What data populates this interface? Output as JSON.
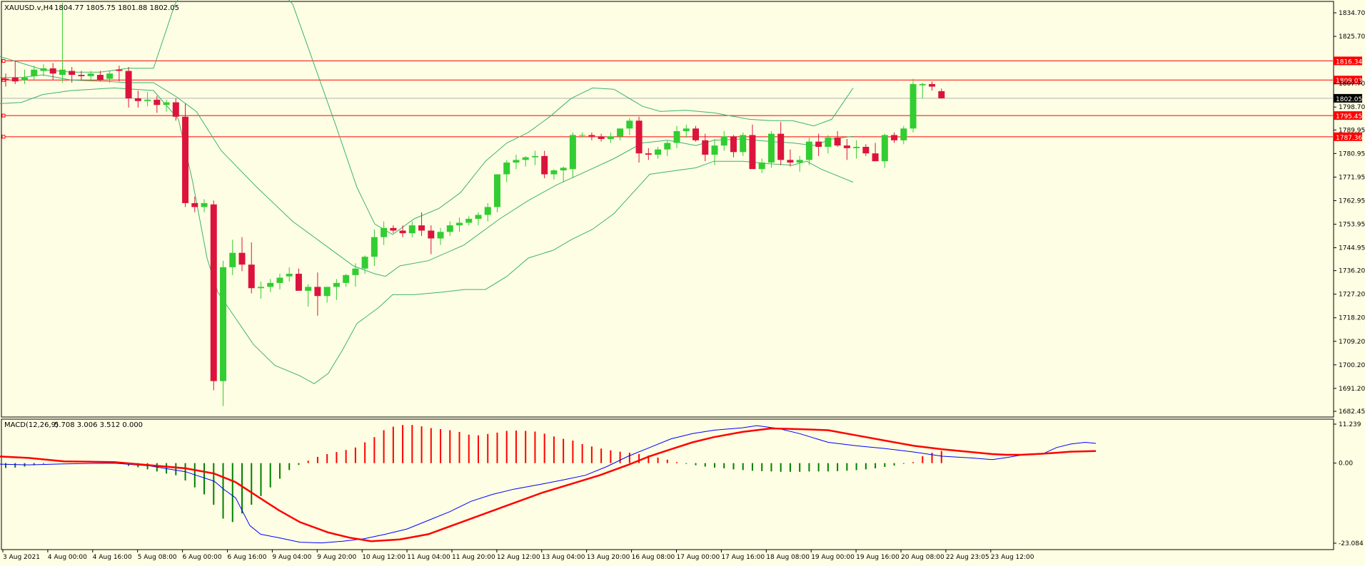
{
  "colors": {
    "background": "#fefee4",
    "bull": "#32cd32",
    "bear": "#dc143c",
    "bands": "#3cb371",
    "macd_line": "#0000ff",
    "signal_line": "#ff0000",
    "levels": "#ff0000",
    "current_price": "#000000"
  },
  "header": {
    "symbol": "XAUUSD.v,H4",
    "ohlc": "1804.77 1805.75 1801.88 1802.05"
  },
  "price_axis": {
    "min": 1682.45,
    "max": 1834.7,
    "ticks": [
      "1834.70",
      "1825.70",
      "1807.70",
      "1798.70",
      "1789.95",
      "1780.95",
      "1771.95",
      "1762.95",
      "1753.95",
      "1744.95",
      "1736.20",
      "1727.20",
      "1718.20",
      "1709.20",
      "1700.20",
      "1691.20",
      "1682.45"
    ]
  },
  "levels": [
    {
      "price": 1816.34,
      "label": "1816.34"
    },
    {
      "price": 1809.03,
      "label": "1809.03"
    },
    {
      "price": 1795.45,
      "label": "1795.45"
    },
    {
      "price": 1787.36,
      "label": "1787.36"
    }
  ],
  "current_price": {
    "price": 1802.05,
    "label": "1802.05"
  },
  "indicator": {
    "name": "MACD(12,26,9)",
    "values": "5.708 3.006 3.512 0.000",
    "axis_labels": [
      "11.239",
      "0.00",
      "-23.084"
    ],
    "max": 11.239,
    "min": -23.084
  },
  "time_axis": [
    "3 Aug 2021",
    "4 Aug 00:00",
    "4 Aug 16:00",
    "5 Aug 08:00",
    "6 Aug 00:00",
    "6 Aug 16:00",
    "9 Aug 04:00",
    "9 Aug 20:00",
    "10 Aug 12:00",
    "11 Aug 04:00",
    "11 Aug 20:00",
    "12 Aug 12:00",
    "13 Aug 04:00",
    "13 Aug 20:00",
    "16 Aug 08:00",
    "17 Aug 00:00",
    "17 Aug 16:00",
    "18 Aug 08:00",
    "19 Aug 00:00",
    "19 Aug 16:00",
    "20 Aug 08:00",
    "22 Aug 23:05",
    "23 Aug 12:00"
  ],
  "chart_data": {
    "type": "candlestick",
    "ohlc": [
      [
        1809.5,
        1811.5,
        1806.5,
        1809.0
      ],
      [
        1810.0,
        1816.5,
        1807.5,
        1808.5
      ],
      [
        1809.0,
        1813.0,
        1807.5,
        1810.0
      ],
      [
        1810.5,
        1814.5,
        1809.0,
        1813.0
      ],
      [
        1812.5,
        1815.0,
        1810.5,
        1813.5
      ],
      [
        1813.5,
        1815.5,
        1809.0,
        1811.5
      ],
      [
        1811.0,
        1838.5,
        1808.0,
        1813.0
      ],
      [
        1812.5,
        1814.0,
        1808.0,
        1811.0
      ],
      [
        1811.0,
        1812.5,
        1809.0,
        1810.5
      ],
      [
        1810.5,
        1812.5,
        1808.5,
        1811.5
      ],
      [
        1811.0,
        1812.5,
        1808.5,
        1809.0
      ],
      [
        1809.5,
        1812.5,
        1808.0,
        1811.5
      ],
      [
        1813.0,
        1814.5,
        1808.5,
        1812.5
      ],
      [
        1812.5,
        1814.0,
        1798.5,
        1802.0
      ],
      [
        1802.0,
        1805.0,
        1798.5,
        1801.0
      ],
      [
        1801.0,
        1804.5,
        1799.0,
        1801.5
      ],
      [
        1801.5,
        1803.0,
        1796.5,
        1799.5
      ],
      [
        1799.5,
        1801.5,
        1797.0,
        1800.5
      ],
      [
        1800.5,
        1802.0,
        1793.5,
        1795.0
      ],
      [
        1795.0,
        1800.0,
        1760.5,
        1762.0
      ],
      [
        1762.0,
        1764.5,
        1758.5,
        1760.5
      ],
      [
        1760.5,
        1763.5,
        1758.5,
        1762.0
      ],
      [
        1761.5,
        1763.0,
        1690.5,
        1694.0
      ],
      [
        1694.0,
        1740.0,
        1684.5,
        1737.5
      ],
      [
        1737.5,
        1748.0,
        1734.5,
        1743.0
      ],
      [
        1743.0,
        1749.0,
        1736.0,
        1738.5
      ],
      [
        1738.5,
        1747.0,
        1727.5,
        1729.5
      ],
      [
        1729.5,
        1732.0,
        1725.5,
        1730.0
      ],
      [
        1730.0,
        1733.0,
        1728.0,
        1731.5
      ],
      [
        1731.5,
        1735.0,
        1729.0,
        1733.5
      ],
      [
        1734.0,
        1737.5,
        1732.0,
        1735.0
      ],
      [
        1735.0,
        1737.0,
        1729.0,
        1728.5
      ],
      [
        1728.5,
        1731.0,
        1722.5,
        1730.0
      ],
      [
        1730.0,
        1735.5,
        1719.0,
        1726.5
      ],
      [
        1726.5,
        1729.5,
        1724.0,
        1730.0
      ],
      [
        1730.0,
        1733.0,
        1725.0,
        1731.5
      ],
      [
        1731.5,
        1735.0,
        1730.0,
        1734.5
      ],
      [
        1734.5,
        1739.0,
        1730.0,
        1737.0
      ],
      [
        1737.0,
        1742.0,
        1735.0,
        1741.5
      ],
      [
        1741.5,
        1752.0,
        1738.0,
        1749.0
      ],
      [
        1749.0,
        1755.0,
        1746.0,
        1752.5
      ],
      [
        1752.5,
        1753.5,
        1750.5,
        1751.5
      ],
      [
        1751.5,
        1753.5,
        1749.0,
        1750.5
      ],
      [
        1750.5,
        1755.0,
        1749.0,
        1753.5
      ],
      [
        1753.5,
        1758.5,
        1749.5,
        1751.5
      ],
      [
        1751.5,
        1753.5,
        1742.5,
        1748.5
      ],
      [
        1748.5,
        1752.5,
        1746.0,
        1751.0
      ],
      [
        1751.0,
        1755.0,
        1749.5,
        1753.5
      ],
      [
        1753.5,
        1756.5,
        1751.0,
        1754.5
      ],
      [
        1754.5,
        1757.0,
        1753.5,
        1756.0
      ],
      [
        1756.0,
        1758.5,
        1753.5,
        1757.5
      ],
      [
        1757.5,
        1762.0,
        1755.0,
        1760.5
      ],
      [
        1760.5,
        1773.0,
        1758.5,
        1773.0
      ],
      [
        1773.0,
        1778.5,
        1770.0,
        1777.5
      ],
      [
        1777.5,
        1780.5,
        1775.0,
        1778.5
      ],
      [
        1778.5,
        1780.0,
        1776.0,
        1779.5
      ],
      [
        1779.5,
        1782.0,
        1776.5,
        1780.0
      ],
      [
        1780.0,
        1782.0,
        1771.5,
        1773.0
      ],
      [
        1773.0,
        1775.0,
        1771.0,
        1774.5
      ],
      [
        1774.5,
        1776.0,
        1770.0,
        1775.5
      ],
      [
        1775.0,
        1789.0,
        1771.5,
        1788.0
      ],
      [
        1788.0,
        1789.0,
        1787.0,
        1788.0
      ],
      [
        1788.0,
        1789.0,
        1786.0,
        1787.5
      ],
      [
        1787.5,
        1788.5,
        1785.5,
        1786.5
      ],
      [
        1786.5,
        1789.0,
        1785.0,
        1787.5
      ],
      [
        1787.5,
        1790.5,
        1786.0,
        1790.5
      ],
      [
        1790.5,
        1794.5,
        1788.0,
        1793.5
      ],
      [
        1793.5,
        1795.0,
        1777.5,
        1781.0
      ],
      [
        1781.0,
        1783.0,
        1778.5,
        1780.5
      ],
      [
        1780.5,
        1783.5,
        1779.0,
        1782.5
      ],
      [
        1782.5,
        1786.0,
        1780.0,
        1785.0
      ],
      [
        1785.0,
        1791.5,
        1783.0,
        1789.5
      ],
      [
        1789.5,
        1792.0,
        1787.0,
        1790.5
      ],
      [
        1790.5,
        1791.5,
        1785.5,
        1786.0
      ],
      [
        1786.0,
        1788.5,
        1778.0,
        1780.5
      ],
      [
        1780.5,
        1786.5,
        1776.5,
        1784.0
      ],
      [
        1784.0,
        1789.5,
        1782.0,
        1787.5
      ],
      [
        1787.5,
        1788.0,
        1779.5,
        1781.5
      ],
      [
        1781.5,
        1789.0,
        1780.0,
        1788.0
      ],
      [
        1788.0,
        1792.0,
        1775.5,
        1775.0
      ],
      [
        1775.0,
        1779.0,
        1773.5,
        1777.5
      ],
      [
        1777.5,
        1789.5,
        1775.5,
        1788.5
      ],
      [
        1788.5,
        1793.0,
        1776.5,
        1778.5
      ],
      [
        1778.5,
        1782.5,
        1776.0,
        1777.5
      ],
      [
        1777.5,
        1780.0,
        1774.0,
        1778.5
      ],
      [
        1778.5,
        1787.0,
        1776.5,
        1785.5
      ],
      [
        1785.5,
        1788.5,
        1780.0,
        1783.5
      ],
      [
        1783.5,
        1788.0,
        1781.0,
        1787.0
      ],
      [
        1787.0,
        1789.5,
        1783.5,
        1784.0
      ],
      [
        1784.0,
        1786.5,
        1778.5,
        1783.0
      ],
      [
        1783.0,
        1786.0,
        1779.0,
        1783.5
      ],
      [
        1783.5,
        1784.5,
        1780.0,
        1781.0
      ],
      [
        1781.0,
        1785.0,
        1778.0,
        1778.0
      ],
      [
        1778.0,
        1788.5,
        1775.5,
        1788.0
      ],
      [
        1788.0,
        1789.0,
        1785.0,
        1786.0
      ],
      [
        1786.0,
        1791.5,
        1784.5,
        1790.5
      ],
      [
        1790.5,
        1809.5,
        1789.0,
        1807.5
      ],
      [
        1807.0,
        1808.0,
        1802.0,
        1807.5
      ],
      [
        1807.5,
        1808.5,
        1805.0,
        1806.5
      ],
      [
        1804.77,
        1805.75,
        1801.88,
        1802.05
      ]
    ],
    "bb_upper": [
      [
        0,
        1818
      ],
      [
        30,
        1815.5
      ],
      [
        60,
        1813
      ],
      [
        100,
        1812
      ],
      [
        140,
        1812
      ],
      [
        180,
        1813.5
      ],
      [
        215,
        1813.5
      ],
      [
        245,
        1838
      ],
      [
        275,
        1850
      ],
      [
        320,
        1850
      ],
      [
        370,
        1850
      ],
      [
        410,
        1838
      ],
      [
        440,
        1815
      ],
      [
        470,
        1792
      ],
      [
        500,
        1768
      ],
      [
        525,
        1754
      ],
      [
        550,
        1750
      ],
      [
        580,
        1756
      ],
      [
        615,
        1760
      ],
      [
        645,
        1766
      ],
      [
        680,
        1778
      ],
      [
        710,
        1785
      ],
      [
        740,
        1789
      ],
      [
        770,
        1795
      ],
      [
        800,
        1802
      ],
      [
        830,
        1806
      ],
      [
        860,
        1805.5
      ],
      [
        900,
        1799
      ],
      [
        925,
        1797
      ],
      [
        960,
        1797.5
      ],
      [
        1000,
        1796.5
      ],
      [
        1050,
        1794
      ],
      [
        1080,
        1793.5
      ],
      [
        1110,
        1793.5
      ],
      [
        1140,
        1791.5
      ],
      [
        1165,
        1794
      ],
      [
        1195,
        1806
      ]
    ],
    "bb_middle": [
      [
        0,
        1810
      ],
      [
        30,
        1810
      ],
      [
        60,
        1811
      ],
      [
        100,
        1809
      ],
      [
        150,
        1808.5
      ],
      [
        180,
        1808
      ],
      [
        215,
        1808
      ],
      [
        245,
        1803
      ],
      [
        275,
        1797
      ],
      [
        310,
        1782
      ],
      [
        360,
        1768
      ],
      [
        410,
        1755
      ],
      [
        460,
        1745
      ],
      [
        495,
        1738
      ],
      [
        525,
        1735
      ],
      [
        540,
        1734
      ],
      [
        560,
        1738
      ],
      [
        600,
        1740
      ],
      [
        650,
        1746
      ],
      [
        700,
        1756
      ],
      [
        740,
        1763
      ],
      [
        780,
        1769
      ],
      [
        820,
        1774
      ],
      [
        860,
        1779
      ],
      [
        900,
        1785
      ],
      [
        935,
        1786
      ],
      [
        975,
        1784
      ],
      [
        1000,
        1786
      ],
      [
        1040,
        1786.5
      ],
      [
        1080,
        1785.5
      ],
      [
        1110,
        1785
      ],
      [
        1140,
        1784
      ],
      [
        1165,
        1786.5
      ],
      [
        1195,
        1787.5
      ]
    ],
    "bb_lower": [
      [
        0,
        1800
      ],
      [
        30,
        1800.5
      ],
      [
        60,
        1803.5
      ],
      [
        100,
        1805
      ],
      [
        160,
        1806
      ],
      [
        215,
        1805
      ],
      [
        250,
        1794
      ],
      [
        270,
        1770
      ],
      [
        290,
        1741
      ],
      [
        305,
        1728
      ],
      [
        325,
        1720
      ],
      [
        355,
        1708
      ],
      [
        385,
        1700
      ],
      [
        420,
        1696
      ],
      [
        440,
        1693
      ],
      [
        460,
        1697
      ],
      [
        480,
        1706
      ],
      [
        500,
        1716
      ],
      [
        530,
        1722
      ],
      [
        550,
        1727
      ],
      [
        580,
        1727
      ],
      [
        620,
        1728
      ],
      [
        650,
        1729
      ],
      [
        680,
        1729
      ],
      [
        710,
        1734
      ],
      [
        740,
        1741
      ],
      [
        775,
        1744
      ],
      [
        800,
        1748
      ],
      [
        830,
        1752
      ],
      [
        860,
        1758
      ],
      [
        880,
        1764
      ],
      [
        900,
        1770
      ],
      [
        910,
        1773
      ],
      [
        935,
        1774
      ],
      [
        975,
        1775.5
      ],
      [
        1000,
        1778
      ],
      [
        1040,
        1778
      ],
      [
        1080,
        1777
      ],
      [
        1110,
        1776.5
      ],
      [
        1130,
        1778
      ],
      [
        1150,
        1775
      ],
      [
        1195,
        1770
      ]
    ],
    "macd_hist": [
      -1.4,
      -1.3,
      -1.0,
      -0.6,
      -0.2,
      0.0,
      0.0,
      0.0,
      0.0,
      0.0,
      0.0,
      0.0,
      0.0,
      -0.8,
      -1.2,
      -1.8,
      -2.4,
      -3.0,
      -3.5,
      -5.0,
      -7.0,
      -9.0,
      -12.0,
      -16.0,
      -17.0,
      -14.5,
      -12.0,
      -9.5,
      -7.0,
      -4.5,
      -2.0,
      -0.5,
      0.7,
      1.8,
      2.6,
      3.2,
      3.8,
      4.5,
      6.0,
      7.5,
      9.5,
      10.5,
      11.0,
      11.0,
      10.6,
      10.1,
      9.8,
      9.5,
      9.0,
      8.2,
      8.0,
      8.4,
      8.8,
      9.3,
      9.4,
      9.3,
      9.1,
      8.5,
      7.7,
      7.0,
      6.5,
      5.5,
      4.8,
      4.2,
      3.7,
      3.3,
      3.0,
      2.6,
      2.2,
      1.6,
      1.0,
      0.3,
      -0.2,
      -0.6,
      -1.0,
      -1.3,
      -1.5,
      -1.8,
      -2.0,
      -2.2,
      -2.3,
      -2.4,
      -2.5,
      -2.5,
      -2.5,
      -2.4,
      -2.4,
      -2.4,
      -2.3,
      -2.2,
      -2.0,
      -1.8,
      -1.5,
      -1.1,
      -0.7,
      -0.2,
      0.3,
      2.0,
      3.0,
      3.5
    ],
    "macd_line": [
      [
        0,
        -0.3
      ],
      [
        40,
        -0.5
      ],
      [
        90,
        -0.2
      ],
      [
        160,
        0
      ],
      [
        210,
        -0.8
      ],
      [
        260,
        -2.5
      ],
      [
        300,
        -5.2
      ],
      [
        315,
        -7.8
      ],
      [
        330,
        -10.0
      ],
      [
        350,
        -18
      ],
      [
        365,
        -20.5
      ],
      [
        390,
        -21.5
      ],
      [
        420,
        -22.8
      ],
      [
        450,
        -23.0
      ],
      [
        480,
        -22.5
      ],
      [
        510,
        -21.8
      ],
      [
        540,
        -20.5
      ],
      [
        570,
        -19.0
      ],
      [
        600,
        -16.5
      ],
      [
        630,
        -14.0
      ],
      [
        660,
        -11.0
      ],
      [
        690,
        -9.0
      ],
      [
        720,
        -7.5
      ],
      [
        760,
        -6.0
      ],
      [
        790,
        -4.8
      ],
      [
        820,
        -3.5
      ],
      [
        850,
        -1.0
      ],
      [
        880,
        2.0
      ],
      [
        910,
        4.5
      ],
      [
        940,
        7.0
      ],
      [
        970,
        8.5
      ],
      [
        1000,
        9.5
      ],
      [
        1040,
        10.2
      ],
      [
        1060,
        10.8
      ],
      [
        1090,
        10.0
      ],
      [
        1120,
        8.5
      ],
      [
        1160,
        6.0
      ],
      [
        1200,
        5.0
      ],
      [
        1240,
        4.2
      ],
      [
        1280,
        3.2
      ],
      [
        1320,
        2.0
      ],
      [
        1360,
        1.5
      ],
      [
        1390,
        1.0
      ],
      [
        1410,
        1.6
      ],
      [
        1430,
        2.3
      ],
      [
        1460,
        2.6
      ],
      [
        1480,
        4.5
      ],
      [
        1500,
        5.5
      ],
      [
        1520,
        6.0
      ],
      [
        1535,
        5.7
      ]
    ],
    "signal_line": [
      [
        0,
        1.9
      ],
      [
        40,
        1.5
      ],
      [
        90,
        0.5
      ],
      [
        160,
        0.3
      ],
      [
        210,
        -0.6
      ],
      [
        260,
        -1.5
      ],
      [
        300,
        -3.0
      ],
      [
        330,
        -5.5
      ],
      [
        360,
        -9.5
      ],
      [
        390,
        -13.5
      ],
      [
        420,
        -17.0
      ],
      [
        460,
        -20.0
      ],
      [
        490,
        -21.5
      ],
      [
        520,
        -22.5
      ],
      [
        560,
        -22.0
      ],
      [
        600,
        -20.5
      ],
      [
        640,
        -17.5
      ],
      [
        680,
        -14.5
      ],
      [
        720,
        -11.5
      ],
      [
        760,
        -8.5
      ],
      [
        800,
        -6.0
      ],
      [
        840,
        -3.5
      ],
      [
        880,
        -0.5
      ],
      [
        910,
        2.0
      ],
      [
        940,
        4.0
      ],
      [
        970,
        6.0
      ],
      [
        1000,
        7.5
      ],
      [
        1040,
        9.0
      ],
      [
        1080,
        10.0
      ],
      [
        1120,
        9.8
      ],
      [
        1160,
        9.5
      ],
      [
        1200,
        8.0
      ],
      [
        1240,
        6.5
      ],
      [
        1280,
        5.0
      ],
      [
        1320,
        4.0
      ],
      [
        1360,
        3.2
      ],
      [
        1390,
        2.6
      ],
      [
        1410,
        2.4
      ],
      [
        1430,
        2.4
      ],
      [
        1460,
        2.7
      ],
      [
        1480,
        3.0
      ],
      [
        1500,
        3.3
      ],
      [
        1535,
        3.5
      ]
    ]
  }
}
